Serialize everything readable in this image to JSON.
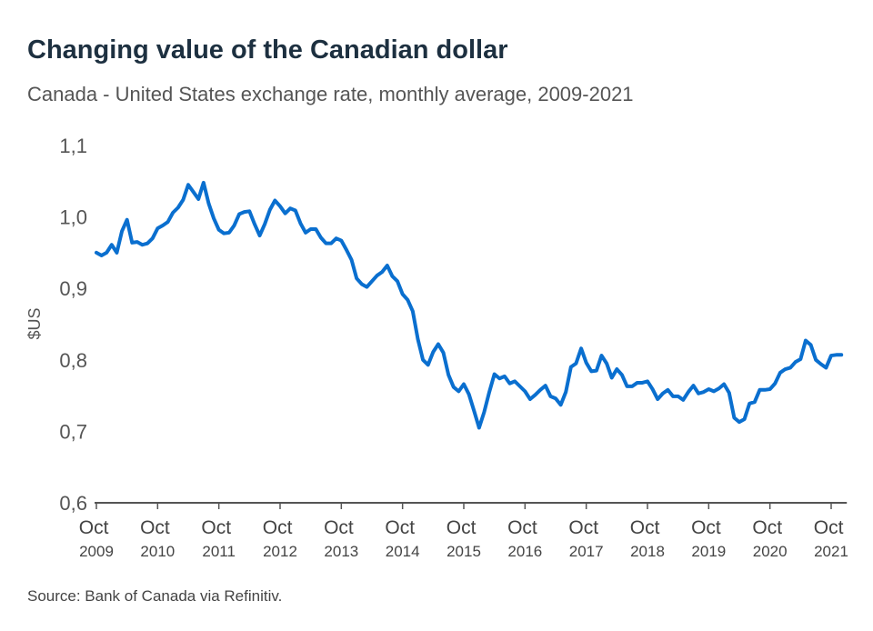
{
  "chart_data": {
    "type": "line",
    "title": "Changing value of the Canadian dollar",
    "subtitle": "Canada - United States exchange rate, monthly average, 2009-2021",
    "y_label": "$US",
    "source": "Source: Bank of Canada via Refinitiv.",
    "color": "#0a6fcf",
    "categories": [
      "Oct 2009",
      null,
      null,
      null,
      null,
      null,
      null,
      null,
      null,
      null,
      null,
      null,
      "Oct 2010",
      null,
      null,
      null,
      null,
      null,
      null,
      null,
      null,
      null,
      null,
      null,
      "Oct 2011",
      null,
      null,
      null,
      null,
      null,
      null,
      null,
      null,
      null,
      null,
      null,
      "Oct 2012",
      null,
      null,
      null,
      null,
      null,
      null,
      null,
      null,
      null,
      null,
      null,
      "Oct 2013",
      null,
      null,
      null,
      null,
      null,
      null,
      null,
      null,
      null,
      null,
      null,
      "Oct 2014",
      null,
      null,
      null,
      null,
      null,
      null,
      null,
      null,
      null,
      null,
      null,
      "Oct 2015",
      null,
      null,
      null,
      null,
      null,
      null,
      null,
      null,
      null,
      null,
      null,
      "Oct 2016",
      null,
      null,
      null,
      null,
      null,
      null,
      null,
      null,
      null,
      null,
      null,
      "Oct 2017",
      null,
      null,
      null,
      null,
      null,
      null,
      null,
      null,
      null,
      null,
      null,
      "Oct 2018",
      null,
      null,
      null,
      null,
      null,
      null,
      null,
      null,
      null,
      null,
      null,
      "Oct 2019",
      null,
      null,
      null,
      null,
      null,
      null,
      null,
      null,
      null,
      null,
      null,
      "Oct 2020",
      null,
      null,
      null,
      null,
      null,
      null,
      null,
      null,
      null,
      null,
      null,
      "Oct 2021",
      null,
      null
    ],
    "values": [
      0.95,
      0.946,
      0.95,
      0.961,
      0.95,
      0.98,
      0.996,
      0.964,
      0.965,
      0.961,
      0.963,
      0.97,
      0.984,
      0.988,
      0.993,
      1.006,
      1.013,
      1.024,
      1.045,
      1.035,
      1.025,
      1.048,
      1.019,
      0.998,
      0.982,
      0.977,
      0.978,
      0.988,
      1.004,
      1.007,
      1.008,
      0.99,
      0.974,
      0.99,
      1.01,
      1.023,
      1.015,
      1.005,
      1.012,
      1.009,
      0.991,
      0.978,
      0.983,
      0.983,
      0.971,
      0.963,
      0.963,
      0.97,
      0.967,
      0.954,
      0.94,
      0.914,
      0.906,
      0.902,
      0.91,
      0.918,
      0.923,
      0.932,
      0.917,
      0.91,
      0.892,
      0.884,
      0.868,
      0.829,
      0.8,
      0.793,
      0.811,
      0.822,
      0.81,
      0.779,
      0.762,
      0.756,
      0.766,
      0.752,
      0.729,
      0.705,
      0.727,
      0.755,
      0.78,
      0.774,
      0.777,
      0.767,
      0.77,
      0.763,
      0.756,
      0.745,
      0.751,
      0.758,
      0.764,
      0.749,
      0.746,
      0.737,
      0.755,
      0.79,
      0.795,
      0.816,
      0.796,
      0.784,
      0.785,
      0.806,
      0.795,
      0.775,
      0.787,
      0.779,
      0.763,
      0.763,
      0.768,
      0.768,
      0.77,
      0.759,
      0.745,
      0.753,
      0.758,
      0.749,
      0.749,
      0.744,
      0.755,
      0.764,
      0.753,
      0.755,
      0.759,
      0.756,
      0.76,
      0.766,
      0.754,
      0.719,
      0.713,
      0.717,
      0.739,
      0.741,
      0.758,
      0.758,
      0.759,
      0.767,
      0.782,
      0.787,
      0.789,
      0.797,
      0.801,
      0.827,
      0.821,
      0.8,
      0.794,
      0.789,
      0.806,
      0.807,
      0.807
    ],
    "ylim": [
      0.6,
      1.1
    ],
    "yticks": [
      {
        "value": 0.6,
        "label": "0,6"
      },
      {
        "value": 0.7,
        "label": "0,7"
      },
      {
        "value": 0.8,
        "label": "0,8"
      },
      {
        "value": 0.9,
        "label": "0,9"
      },
      {
        "value": 1.0,
        "label": "1,0"
      },
      {
        "value": 1.1,
        "label": "1,1"
      }
    ],
    "grid": false
  }
}
